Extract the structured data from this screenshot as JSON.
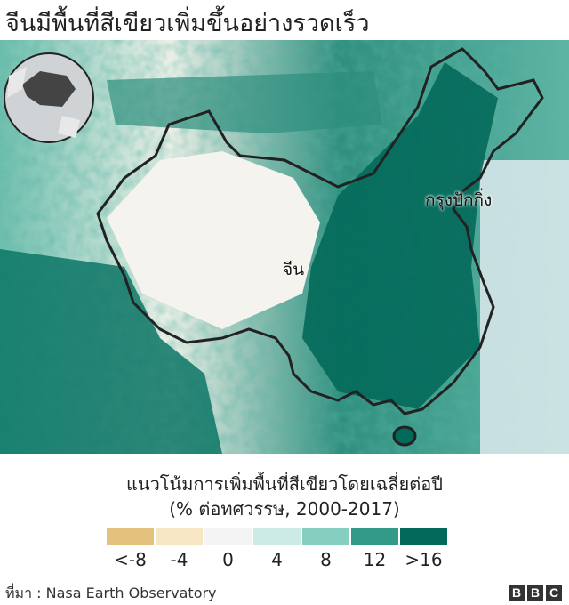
{
  "title": "จีนมีพื้นที่สีเขียวเพิ่มขึ้นอย่างรวดเร็ว",
  "map": {
    "labels": {
      "beijing": "กรุงปักกิ่ง",
      "china": "จีน"
    },
    "inset_globe": "china-locator-globe"
  },
  "legend": {
    "title_line1": "แนวโน้มการเพิ่มพื้นที่สีเขียวโดยเฉลี่ยต่อปี",
    "title_line2": "(% ต่อทศวรรษ, 2000-2017)",
    "items": [
      {
        "label": "<-8",
        "color": "#e2c27c"
      },
      {
        "label": "-4",
        "color": "#f6e6c4"
      },
      {
        "label": "0",
        "color": "#f4f4f4"
      },
      {
        "label": "4",
        "color": "#cdebe5"
      },
      {
        "label": "8",
        "color": "#86cfc0"
      },
      {
        "label": "12",
        "color": "#339a8a"
      },
      {
        "label": ">16",
        "color": "#03695a"
      }
    ]
  },
  "footer": {
    "source": "ที่มา : Nasa Earth Observatory",
    "logo": [
      "B",
      "B",
      "C"
    ]
  }
}
